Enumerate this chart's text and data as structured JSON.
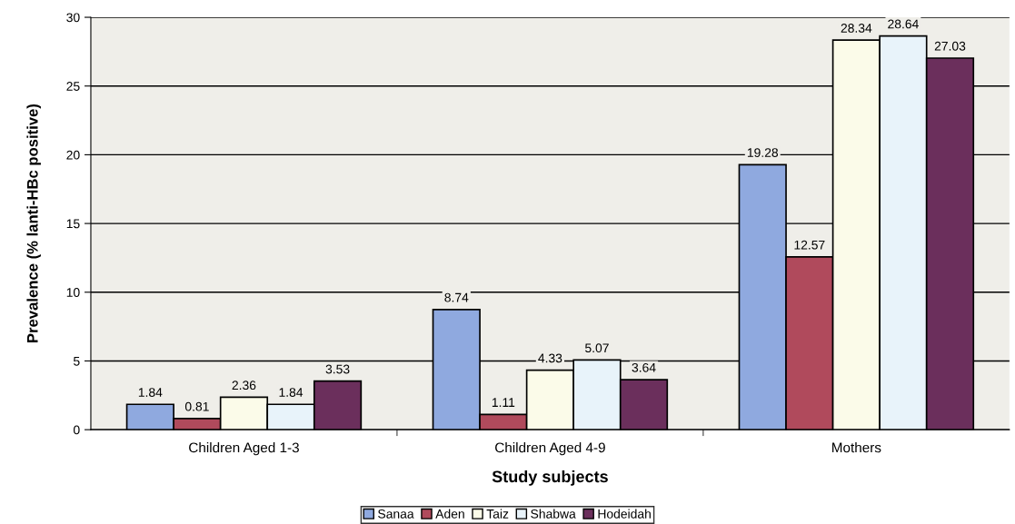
{
  "chart_data": {
    "type": "bar",
    "xlabel": "Study subjects",
    "ylabel": "Prevalence (% lanti-HBc positive)",
    "categories": [
      "Children Aged 1-3",
      "Children Aged 4-9",
      "Mothers"
    ],
    "series": [
      {
        "name": "Sanaa",
        "color": "#8fa9df",
        "values": [
          1.84,
          8.74,
          19.28
        ]
      },
      {
        "name": "Aden",
        "color": "#b04a5c",
        "values": [
          0.81,
          1.11,
          12.57
        ]
      },
      {
        "name": "Taiz",
        "color": "#fbfbe9",
        "values": [
          2.36,
          4.33,
          28.34
        ]
      },
      {
        "name": "Shabwa",
        "color": "#e8f3fa",
        "values": [
          1.84,
          5.07,
          28.64
        ]
      },
      {
        "name": "Hodeidah",
        "color": "#6b2f5c",
        "values": [
          3.53,
          3.64,
          27.03
        ]
      }
    ],
    "ylim": [
      0,
      30
    ],
    "yticks": [
      0,
      5,
      10,
      15,
      20,
      25,
      30
    ],
    "grid": "y",
    "legend": "bottom",
    "data_labels": true
  }
}
